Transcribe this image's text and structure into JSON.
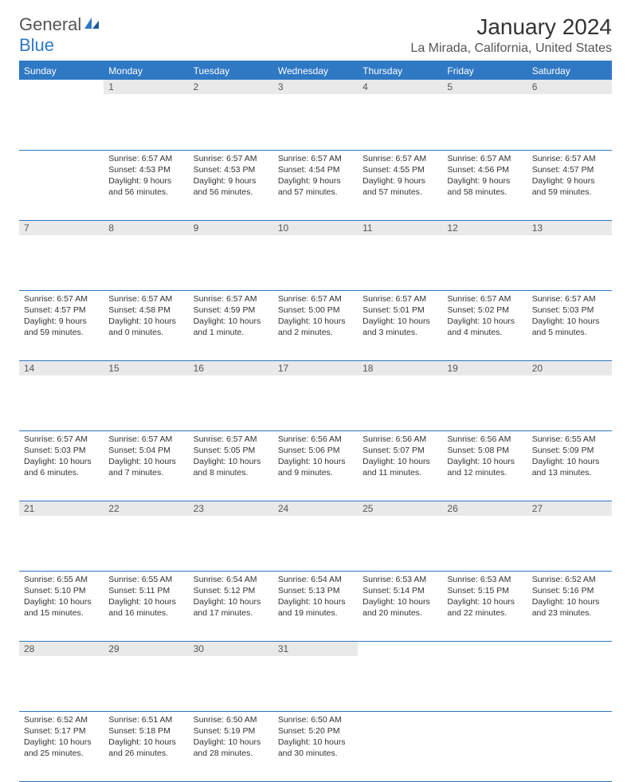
{
  "logo": {
    "part1": "General",
    "part2": "Blue"
  },
  "title": "January 2024",
  "location": "La Mirada, California, United States",
  "colors": {
    "accent": "#2f78c4",
    "header_bg": "#2f78c4",
    "header_text": "#ffffff",
    "daynum_bg": "#e9e9e9",
    "daynum_text": "#555555",
    "body_text": "#333333",
    "border": "#2f78c4",
    "page_bg": "#ffffff"
  },
  "typography": {
    "title_fontsize": 28,
    "location_fontsize": 16,
    "header_fontsize": 12,
    "daynum_fontsize": 12,
    "cell_fontsize": 10.5,
    "logo_fontsize": 22
  },
  "calendar": {
    "type": "table",
    "columns": [
      "Sunday",
      "Monday",
      "Tuesday",
      "Wednesday",
      "Thursday",
      "Friday",
      "Saturday"
    ],
    "first_day_column_index": 1,
    "weeks": [
      [
        null,
        {
          "day": "1",
          "sunrise": "Sunrise: 6:57 AM",
          "sunset": "Sunset: 4:53 PM",
          "daylight": "Daylight: 9 hours and 56 minutes."
        },
        {
          "day": "2",
          "sunrise": "Sunrise: 6:57 AM",
          "sunset": "Sunset: 4:53 PM",
          "daylight": "Daylight: 9 hours and 56 minutes."
        },
        {
          "day": "3",
          "sunrise": "Sunrise: 6:57 AM",
          "sunset": "Sunset: 4:54 PM",
          "daylight": "Daylight: 9 hours and 57 minutes."
        },
        {
          "day": "4",
          "sunrise": "Sunrise: 6:57 AM",
          "sunset": "Sunset: 4:55 PM",
          "daylight": "Daylight: 9 hours and 57 minutes."
        },
        {
          "day": "5",
          "sunrise": "Sunrise: 6:57 AM",
          "sunset": "Sunset: 4:56 PM",
          "daylight": "Daylight: 9 hours and 58 minutes."
        },
        {
          "day": "6",
          "sunrise": "Sunrise: 6:57 AM",
          "sunset": "Sunset: 4:57 PM",
          "daylight": "Daylight: 9 hours and 59 minutes."
        }
      ],
      [
        {
          "day": "7",
          "sunrise": "Sunrise: 6:57 AM",
          "sunset": "Sunset: 4:57 PM",
          "daylight": "Daylight: 9 hours and 59 minutes."
        },
        {
          "day": "8",
          "sunrise": "Sunrise: 6:57 AM",
          "sunset": "Sunset: 4:58 PM",
          "daylight": "Daylight: 10 hours and 0 minutes."
        },
        {
          "day": "9",
          "sunrise": "Sunrise: 6:57 AM",
          "sunset": "Sunset: 4:59 PM",
          "daylight": "Daylight: 10 hours and 1 minute."
        },
        {
          "day": "10",
          "sunrise": "Sunrise: 6:57 AM",
          "sunset": "Sunset: 5:00 PM",
          "daylight": "Daylight: 10 hours and 2 minutes."
        },
        {
          "day": "11",
          "sunrise": "Sunrise: 6:57 AM",
          "sunset": "Sunset: 5:01 PM",
          "daylight": "Daylight: 10 hours and 3 minutes."
        },
        {
          "day": "12",
          "sunrise": "Sunrise: 6:57 AM",
          "sunset": "Sunset: 5:02 PM",
          "daylight": "Daylight: 10 hours and 4 minutes."
        },
        {
          "day": "13",
          "sunrise": "Sunrise: 6:57 AM",
          "sunset": "Sunset: 5:03 PM",
          "daylight": "Daylight: 10 hours and 5 minutes."
        }
      ],
      [
        {
          "day": "14",
          "sunrise": "Sunrise: 6:57 AM",
          "sunset": "Sunset: 5:03 PM",
          "daylight": "Daylight: 10 hours and 6 minutes."
        },
        {
          "day": "15",
          "sunrise": "Sunrise: 6:57 AM",
          "sunset": "Sunset: 5:04 PM",
          "daylight": "Daylight: 10 hours and 7 minutes."
        },
        {
          "day": "16",
          "sunrise": "Sunrise: 6:57 AM",
          "sunset": "Sunset: 5:05 PM",
          "daylight": "Daylight: 10 hours and 8 minutes."
        },
        {
          "day": "17",
          "sunrise": "Sunrise: 6:56 AM",
          "sunset": "Sunset: 5:06 PM",
          "daylight": "Daylight: 10 hours and 9 minutes."
        },
        {
          "day": "18",
          "sunrise": "Sunrise: 6:56 AM",
          "sunset": "Sunset: 5:07 PM",
          "daylight": "Daylight: 10 hours and 11 minutes."
        },
        {
          "day": "19",
          "sunrise": "Sunrise: 6:56 AM",
          "sunset": "Sunset: 5:08 PM",
          "daylight": "Daylight: 10 hours and 12 minutes."
        },
        {
          "day": "20",
          "sunrise": "Sunrise: 6:55 AM",
          "sunset": "Sunset: 5:09 PM",
          "daylight": "Daylight: 10 hours and 13 minutes."
        }
      ],
      [
        {
          "day": "21",
          "sunrise": "Sunrise: 6:55 AM",
          "sunset": "Sunset: 5:10 PM",
          "daylight": "Daylight: 10 hours and 15 minutes."
        },
        {
          "day": "22",
          "sunrise": "Sunrise: 6:55 AM",
          "sunset": "Sunset: 5:11 PM",
          "daylight": "Daylight: 10 hours and 16 minutes."
        },
        {
          "day": "23",
          "sunrise": "Sunrise: 6:54 AM",
          "sunset": "Sunset: 5:12 PM",
          "daylight": "Daylight: 10 hours and 17 minutes."
        },
        {
          "day": "24",
          "sunrise": "Sunrise: 6:54 AM",
          "sunset": "Sunset: 5:13 PM",
          "daylight": "Daylight: 10 hours and 19 minutes."
        },
        {
          "day": "25",
          "sunrise": "Sunrise: 6:53 AM",
          "sunset": "Sunset: 5:14 PM",
          "daylight": "Daylight: 10 hours and 20 minutes."
        },
        {
          "day": "26",
          "sunrise": "Sunrise: 6:53 AM",
          "sunset": "Sunset: 5:15 PM",
          "daylight": "Daylight: 10 hours and 22 minutes."
        },
        {
          "day": "27",
          "sunrise": "Sunrise: 6:52 AM",
          "sunset": "Sunset: 5:16 PM",
          "daylight": "Daylight: 10 hours and 23 minutes."
        }
      ],
      [
        {
          "day": "28",
          "sunrise": "Sunrise: 6:52 AM",
          "sunset": "Sunset: 5:17 PM",
          "daylight": "Daylight: 10 hours and 25 minutes."
        },
        {
          "day": "29",
          "sunrise": "Sunrise: 6:51 AM",
          "sunset": "Sunset: 5:18 PM",
          "daylight": "Daylight: 10 hours and 26 minutes."
        },
        {
          "day": "30",
          "sunrise": "Sunrise: 6:50 AM",
          "sunset": "Sunset: 5:19 PM",
          "daylight": "Daylight: 10 hours and 28 minutes."
        },
        {
          "day": "31",
          "sunrise": "Sunrise: 6:50 AM",
          "sunset": "Sunset: 5:20 PM",
          "daylight": "Daylight: 10 hours and 30 minutes."
        },
        null,
        null,
        null
      ]
    ]
  }
}
